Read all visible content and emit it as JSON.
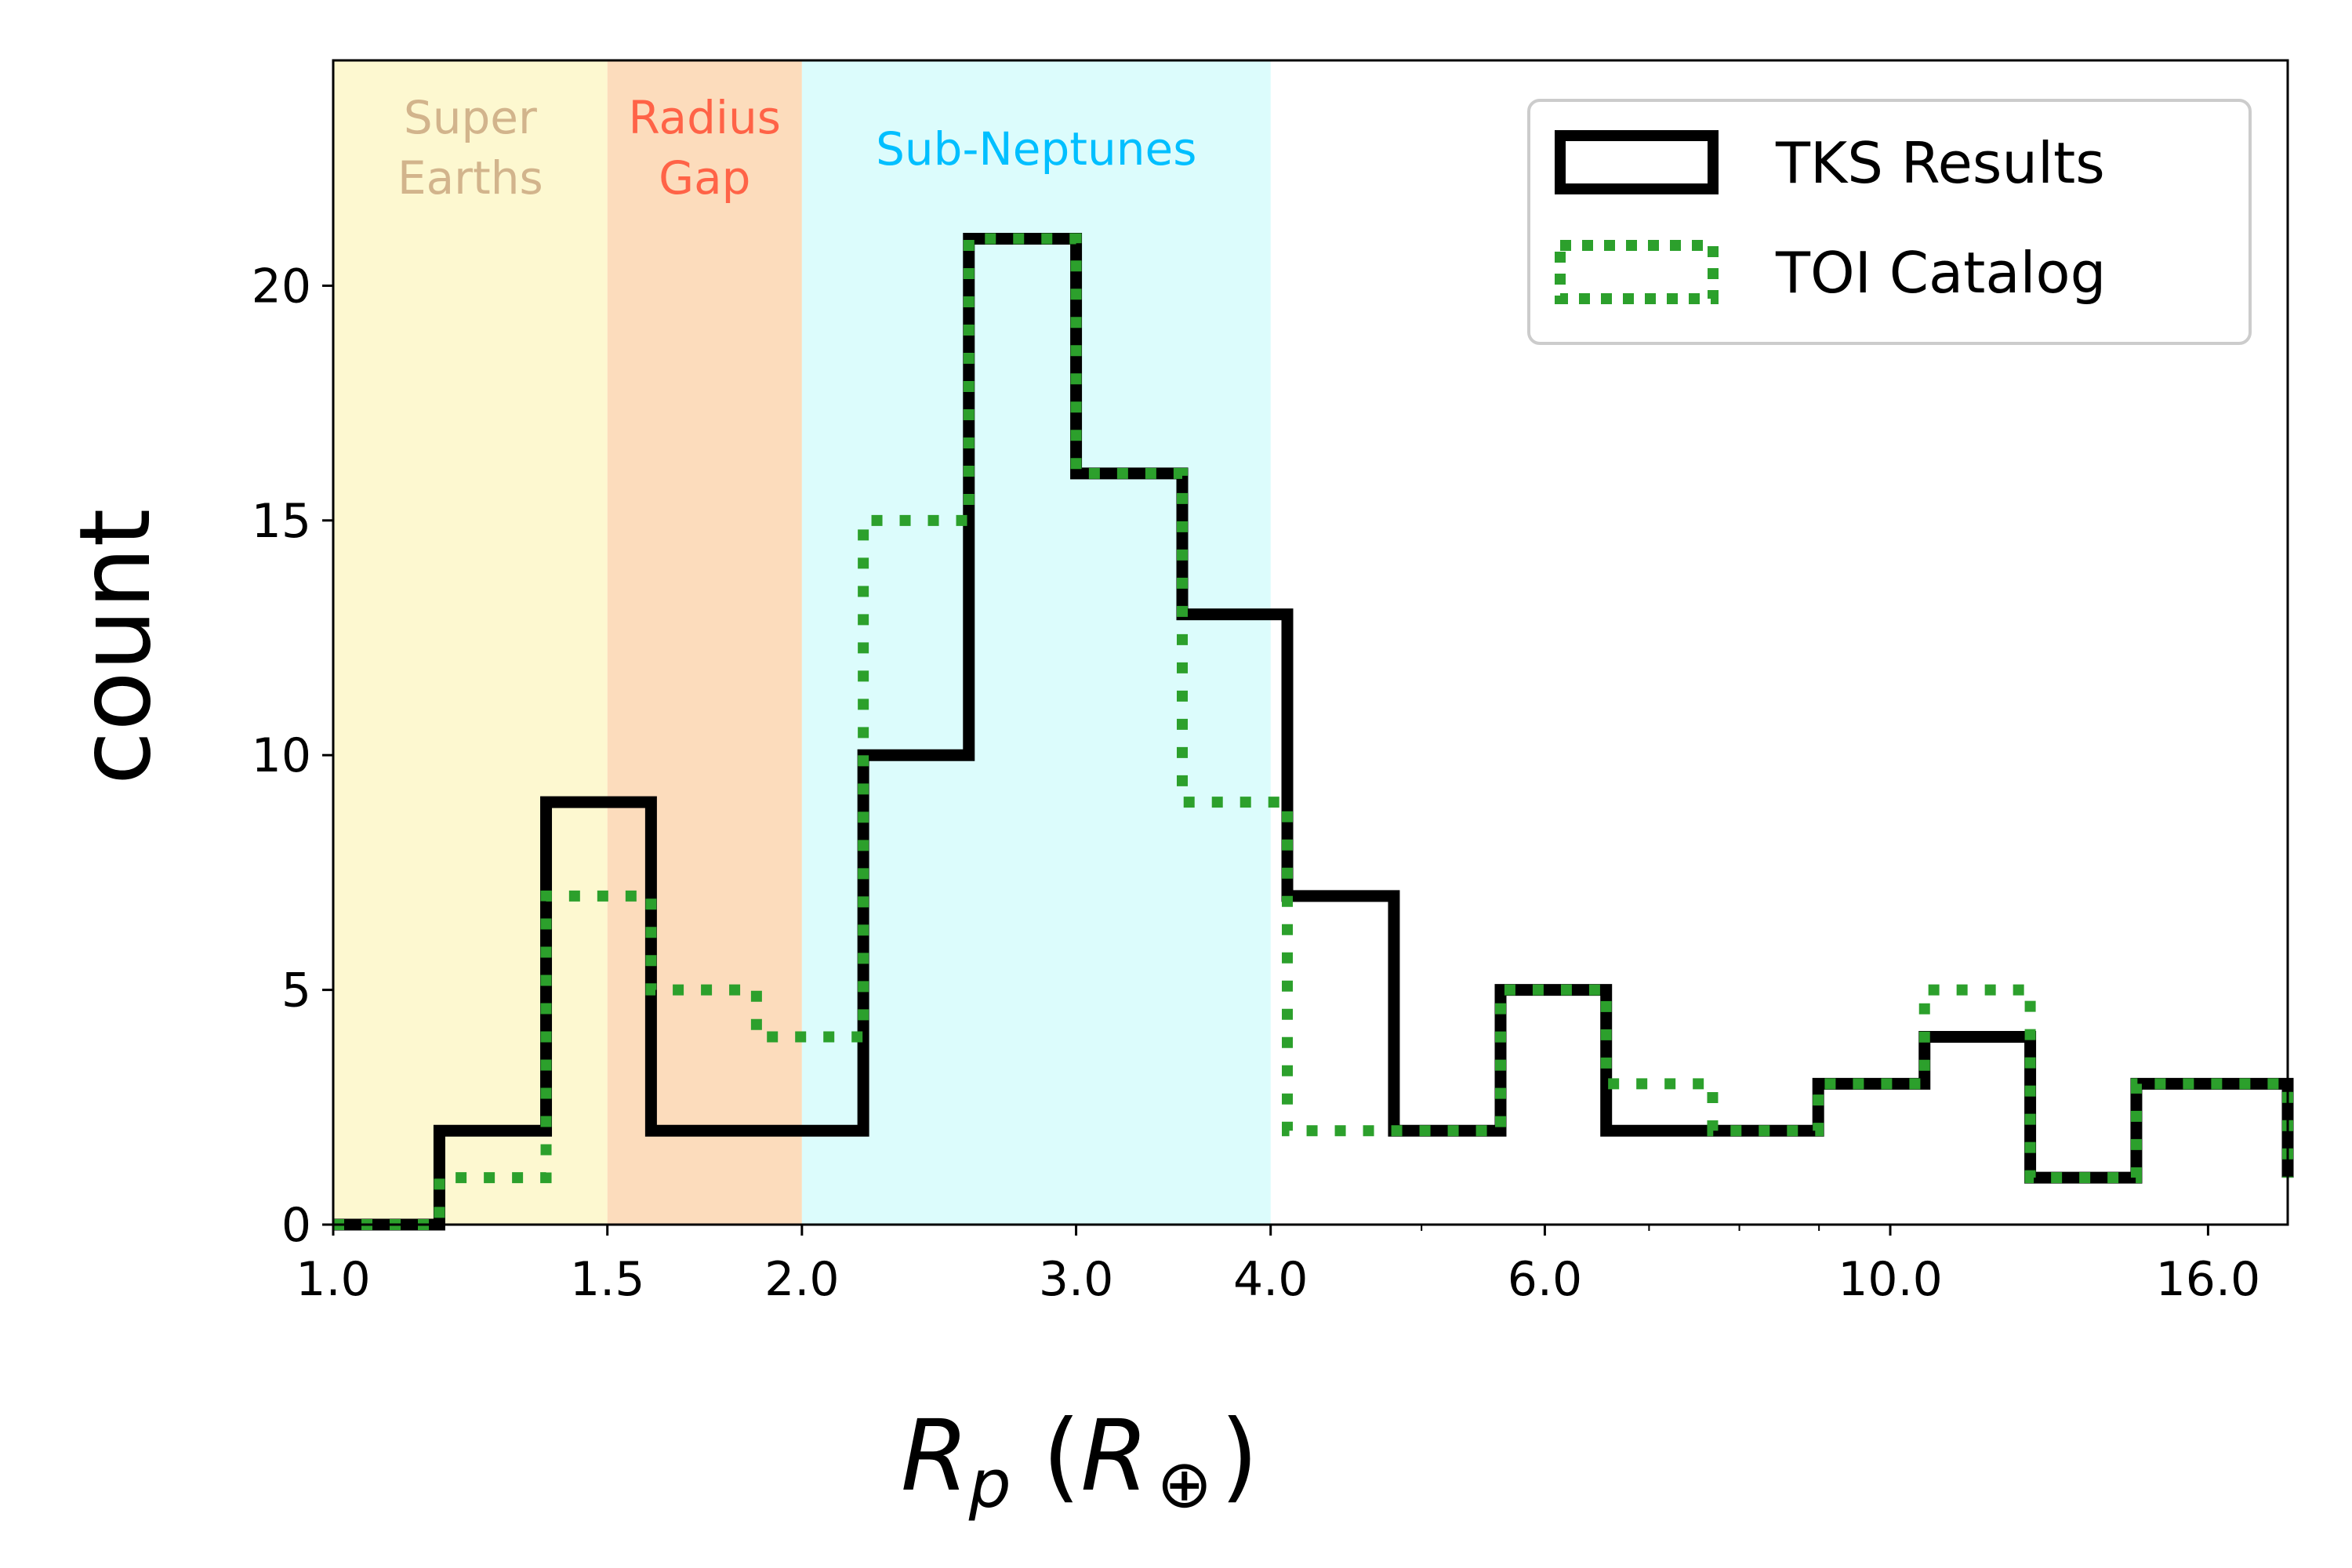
{
  "chart_data": {
    "type": "histogram-step",
    "x_scale": "log",
    "xlim": [
      1.0,
      18.0
    ],
    "ylim": [
      0,
      24.8
    ],
    "xlabel": {
      "main": "R",
      "sub": "p",
      "unit_main": "R",
      "unit_sub": "⊕"
    },
    "ylabel": "count",
    "x_ticks": [
      {
        "value": 1.0,
        "label": "1.0"
      },
      {
        "value": 1.5,
        "label": "1.5"
      },
      {
        "value": 2.0,
        "label": "2.0"
      },
      {
        "value": 3.0,
        "label": "3.0"
      },
      {
        "value": 4.0,
        "label": "4.0"
      },
      {
        "value": 6.0,
        "label": "6.0"
      },
      {
        "value": 10.0,
        "label": "10.0"
      },
      {
        "value": 16.0,
        "label": "16.0"
      }
    ],
    "x_minor_ticks": [
      5.0,
      7.0,
      8.0,
      9.0
    ],
    "y_ticks": [
      {
        "value": 0,
        "label": "0"
      },
      {
        "value": 5,
        "label": "5"
      },
      {
        "value": 10,
        "label": "10"
      },
      {
        "value": 15,
        "label": "15"
      },
      {
        "value": 20,
        "label": "20"
      }
    ],
    "bin_edges": [
      1.0,
      1.17,
      1.37,
      1.6,
      1.87,
      2.19,
      2.56,
      3.0,
      3.51,
      4.1,
      4.8,
      5.62,
      6.57,
      7.69,
      8.99,
      10.52,
      12.3,
      14.39,
      16.84,
      18.0
    ],
    "series": [
      {
        "name": "TKS Results",
        "color": "#000000",
        "style": "solid",
        "values": [
          0,
          2,
          9,
          2,
          2,
          10,
          21,
          16,
          13,
          7,
          2,
          5,
          2,
          2,
          3,
          4,
          1,
          3,
          3,
          1
        ]
      },
      {
        "name": "TOI Catalog",
        "color": "#2ca02c",
        "style": "dotted",
        "values": [
          0,
          1,
          7,
          5,
          4,
          15,
          21,
          16,
          9,
          2,
          2,
          5,
          3,
          2,
          3,
          5,
          1,
          3,
          3,
          1
        ]
      }
    ],
    "regions": [
      {
        "label_lines": [
          "Super",
          "Earths"
        ],
        "x0": 1.0,
        "x1": 1.5,
        "fill": "#fdf8d0",
        "text_color": "#d2b48c"
      },
      {
        "label_lines": [
          "Radius",
          "Gap"
        ],
        "x0": 1.5,
        "x1": 2.0,
        "fill": "#fcdcbc",
        "text_color": "#ff6347"
      },
      {
        "label_lines": [
          "Sub-Neptunes"
        ],
        "x0": 2.0,
        "x1": 4.0,
        "fill": "#dcfcfc",
        "text_color": "#00bfff"
      }
    ],
    "legend": {
      "position": "top-right",
      "entries": [
        "TKS Results",
        "TOI Catalog"
      ]
    },
    "grid": false
  }
}
